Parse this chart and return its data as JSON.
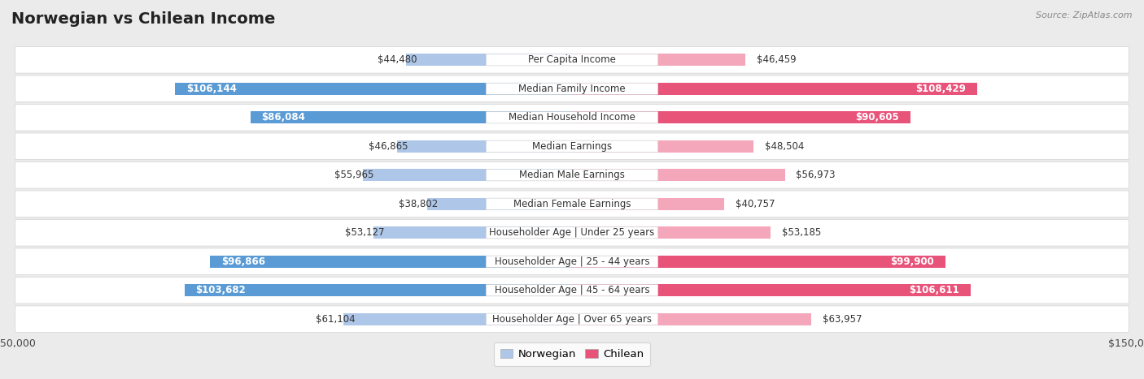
{
  "title": "Norwegian vs Chilean Income",
  "source": "Source: ZipAtlas.com",
  "categories": [
    "Per Capita Income",
    "Median Family Income",
    "Median Household Income",
    "Median Earnings",
    "Median Male Earnings",
    "Median Female Earnings",
    "Householder Age | Under 25 years",
    "Householder Age | 25 - 44 years",
    "Householder Age | 45 - 64 years",
    "Householder Age | Over 65 years"
  ],
  "norwegian_values": [
    44480,
    106144,
    86084,
    46865,
    55965,
    38802,
    53127,
    96866,
    103682,
    61104
  ],
  "chilean_values": [
    46459,
    108429,
    90605,
    48504,
    56973,
    40757,
    53185,
    99900,
    106611,
    63957
  ],
  "max_value": 150000,
  "norwegian_color_high": "#5b9bd5",
  "norwegian_color_low": "#aec6e8",
  "chilean_color_high": "#e8537a",
  "chilean_color_low": "#f4a7bb",
  "bg_color": "#ebebeb",
  "row_bg": "#f5f5f5",
  "row_border": "#d8d8d8",
  "title_fontsize": 14,
  "value_fontsize": 8.5,
  "label_fontsize": 8.5,
  "legend_fontsize": 9.5,
  "axis_label_fontsize": 9,
  "threshold_high": 80000
}
